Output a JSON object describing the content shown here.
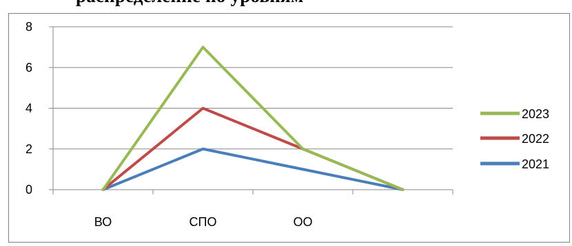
{
  "heading_fragment": "распределение по уровням",
  "chart_data": {
    "type": "line",
    "categories": [
      "ВО",
      "СПО",
      "ОО",
      ""
    ],
    "ylim": [
      0,
      8
    ],
    "yticks": [
      0,
      2,
      4,
      6,
      8
    ],
    "grid": true,
    "legend_position": "right",
    "series": [
      {
        "name": "2021",
        "color": "#4a7ebb",
        "values": [
          0,
          2,
          1,
          0
        ]
      },
      {
        "name": "2022",
        "color": "#be4b48",
        "values": [
          0,
          4,
          2,
          0
        ]
      },
      {
        "name": "2023",
        "color": "#98b954",
        "values": [
          0,
          7,
          2,
          0
        ]
      }
    ],
    "legend_order": [
      "2023",
      "2022",
      "2021"
    ]
  }
}
